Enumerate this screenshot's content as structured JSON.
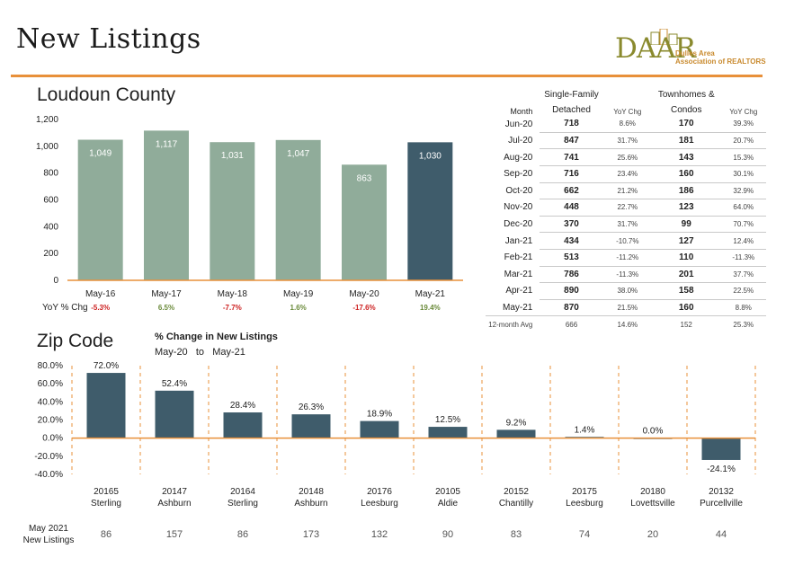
{
  "page": {
    "title": "New Listings"
  },
  "logo": {
    "letters": "DAAR",
    "line1": "Dulles Area",
    "line2": "Association of REALTORS"
  },
  "colors": {
    "accent": "#e8903a",
    "bar_light": "#90ac9a",
    "bar_dark": "#3f5c6b",
    "positive": "#6a8a3a",
    "negative": "#cc1f1f"
  },
  "section1": {
    "title": "Loudoun County",
    "yoy_label": "YoY % Chg"
  },
  "section2": {
    "title": "Zip Code",
    "pct_title": "% Change in New Listings",
    "range_from": "May-20",
    "range_to_word": "to",
    "range_to": "May-21",
    "new_listings_label_line1": "May 2021",
    "new_listings_label_line2": "New Listings"
  },
  "chart_data": [
    {
      "type": "bar",
      "title": "Loudoun County",
      "categories": [
        "May-16",
        "May-17",
        "May-18",
        "May-19",
        "May-20",
        "May-21"
      ],
      "values": [
        1049,
        1117,
        1031,
        1047,
        863,
        1030
      ],
      "value_labels": [
        "1,049",
        "1,117",
        "1,031",
        "1,047",
        "863",
        "1,030"
      ],
      "yoy": [
        "-5.3%",
        "6.5%",
        "-7.7%",
        "1.6%",
        "-17.6%",
        "19.4%"
      ],
      "yoy_sign": [
        "neg",
        "pos",
        "neg",
        "pos",
        "neg",
        "pos"
      ],
      "ylim": [
        0,
        1200
      ],
      "yticks": [
        0,
        200,
        400,
        600,
        800,
        1000,
        1200
      ],
      "ytick_labels": [
        "0",
        "200",
        "400",
        "600",
        "800",
        "1,000",
        "1,200"
      ],
      "highlight_index": 5
    },
    {
      "type": "bar",
      "title": "% Change in New Listings",
      "categories": [
        "20165",
        "20147",
        "20164",
        "20148",
        "20176",
        "20105",
        "20152",
        "20175",
        "20180",
        "20132"
      ],
      "cities": [
        "Sterling",
        "Ashburn",
        "Sterling",
        "Ashburn",
        "Leesburg",
        "Aldie",
        "Chantilly",
        "Leesburg",
        "Lovettsville",
        "Purcellville"
      ],
      "values": [
        72.0,
        52.4,
        28.4,
        26.3,
        18.9,
        12.5,
        9.2,
        1.4,
        0.0,
        -24.1
      ],
      "value_labels": [
        "72.0%",
        "52.4%",
        "28.4%",
        "26.3%",
        "18.9%",
        "12.5%",
        "9.2%",
        "1.4%",
        "0.0%",
        "-24.1%"
      ],
      "new_listings": [
        "86",
        "157",
        "86",
        "173",
        "132",
        "90",
        "83",
        "74",
        "20",
        "44"
      ],
      "ylim": [
        -40,
        80
      ],
      "yticks": [
        -40,
        -20,
        0,
        20,
        40,
        60,
        80
      ],
      "ytick_labels": [
        "-40.0%",
        "-20.0%",
        "0.0%",
        "20.0%",
        "40.0%",
        "60.0%",
        "80.0%"
      ]
    }
  ],
  "table": {
    "headers": {
      "month": "Month",
      "sfd_line1": "Single-Family",
      "sfd_line2": "Detached",
      "yoy": "YoY Chg",
      "th_line1": "Townhomes &",
      "th_line2": "Condos",
      "yoy2": "YoY Chg"
    },
    "rows": [
      {
        "month": "Jun-20",
        "sfd": "718",
        "sfd_yoy": "8.6%",
        "th": "170",
        "th_yoy": "39.3%"
      },
      {
        "month": "Jul-20",
        "sfd": "847",
        "sfd_yoy": "31.7%",
        "th": "181",
        "th_yoy": "20.7%"
      },
      {
        "month": "Aug-20",
        "sfd": "741",
        "sfd_yoy": "25.6%",
        "th": "143",
        "th_yoy": "15.3%"
      },
      {
        "month": "Sep-20",
        "sfd": "716",
        "sfd_yoy": "23.4%",
        "th": "160",
        "th_yoy": "30.1%"
      },
      {
        "month": "Oct-20",
        "sfd": "662",
        "sfd_yoy": "21.2%",
        "th": "186",
        "th_yoy": "32.9%"
      },
      {
        "month": "Nov-20",
        "sfd": "448",
        "sfd_yoy": "22.7%",
        "th": "123",
        "th_yoy": "64.0%"
      },
      {
        "month": "Dec-20",
        "sfd": "370",
        "sfd_yoy": "31.7%",
        "th": "99",
        "th_yoy": "70.7%"
      },
      {
        "month": "Jan-21",
        "sfd": "434",
        "sfd_yoy": "-10.7%",
        "th": "127",
        "th_yoy": "12.4%"
      },
      {
        "month": "Feb-21",
        "sfd": "513",
        "sfd_yoy": "-11.2%",
        "th": "110",
        "th_yoy": "-11.3%"
      },
      {
        "month": "Mar-21",
        "sfd": "786",
        "sfd_yoy": "-11.3%",
        "th": "201",
        "th_yoy": "37.7%"
      },
      {
        "month": "Apr-21",
        "sfd": "890",
        "sfd_yoy": "38.0%",
        "th": "158",
        "th_yoy": "22.5%"
      },
      {
        "month": "May-21",
        "sfd": "870",
        "sfd_yoy": "21.5%",
        "th": "160",
        "th_yoy": "8.8%"
      }
    ],
    "footer": {
      "label": "12-month Avg",
      "sfd": "666",
      "sfd_yoy": "14.6%",
      "th": "152",
      "th_yoy": "25.3%"
    }
  }
}
